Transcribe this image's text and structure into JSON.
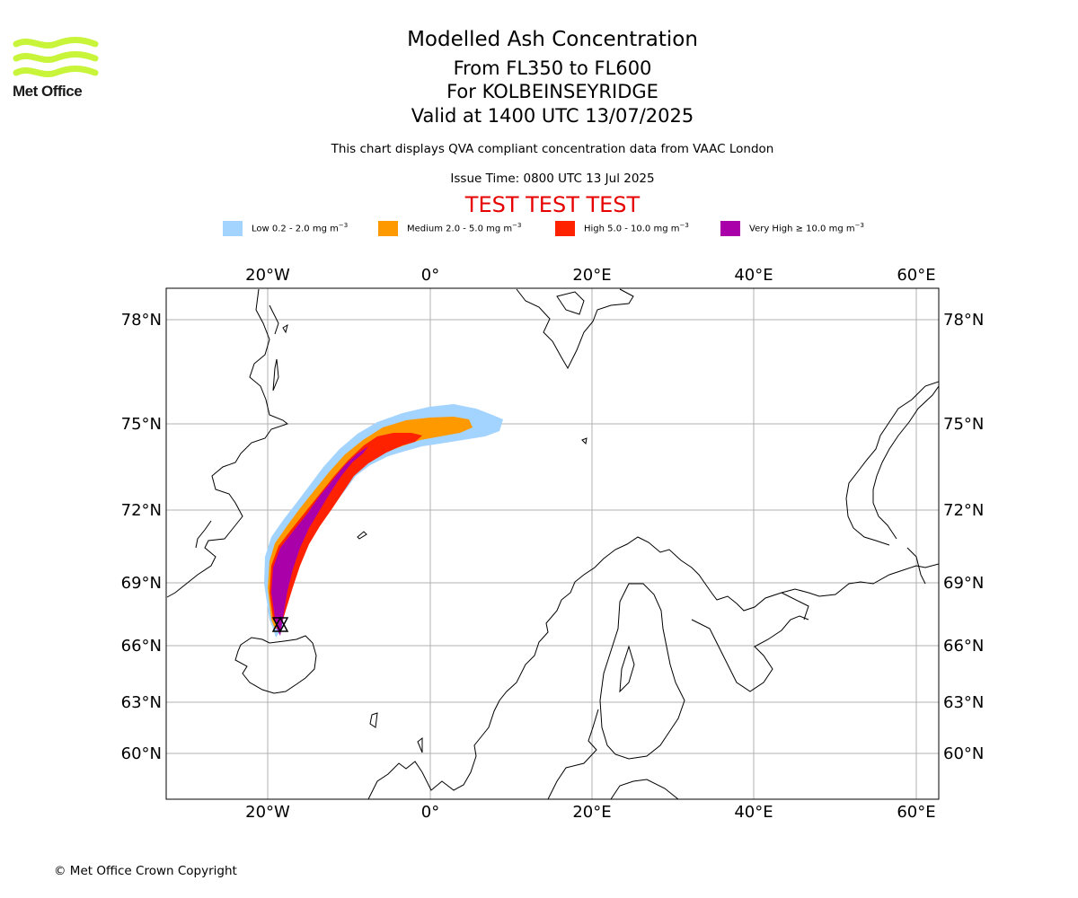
{
  "header": {
    "logo_text": "Met Office",
    "title": "Modelled Ash Concentration",
    "levels": "From FL350 to FL600",
    "volcano": "For KOLBEINSEYRIDGE",
    "valid": "Valid at 1400 UTC 13/07/2025",
    "description": "This chart displays QVA compliant concentration data from VAAC London",
    "issue_time": "Issue Time: 0800 UTC 13 Jul 2025",
    "test_banner": "TEST TEST TEST"
  },
  "legend": [
    {
      "label": "Low 0.2 - 2.0 mg m",
      "unit_exp": "−3",
      "color": "#a3d3ff"
    },
    {
      "label": "Medium 2.0 - 5.0 mg m",
      "unit_exp": "−3",
      "color": "#ff9900"
    },
    {
      "label": "High 5.0 - 10.0 mg m",
      "unit_exp": "−3",
      "color": "#ff2200"
    },
    {
      "label": "Very High  ≥  10.0 mg m",
      "unit_exp": "−3",
      "color": "#aa00aa"
    }
  ],
  "map": {
    "lon_labels": [
      "20°W",
      "0°",
      "20°E",
      "40°E",
      "60°E"
    ],
    "lat_labels": [
      "78°N",
      "75°N",
      "72°N",
      "69°N",
      "66°N",
      "63°N",
      "60°N"
    ],
    "volcano_marker": "triangle-star",
    "grid": true
  },
  "footer": {
    "copyright": "© Met Office Crown Copyright"
  }
}
